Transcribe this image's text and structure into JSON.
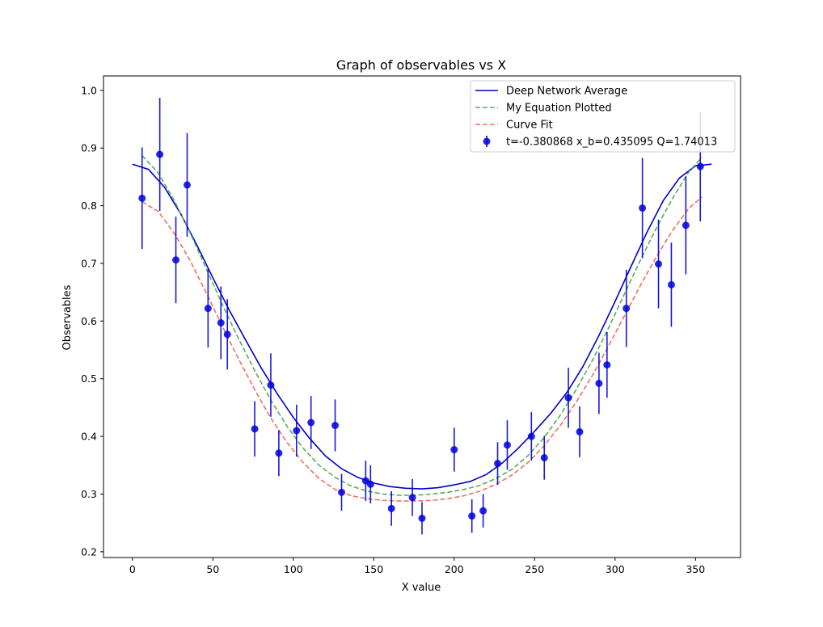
{
  "chart_data": {
    "type": "scatter",
    "title": "Graph of observables vs X",
    "xlabel": "X value",
    "ylabel": "Observables",
    "xlim": [
      -18,
      378
    ],
    "ylim": [
      0.19,
      1.025
    ],
    "xticks": [
      0,
      50,
      100,
      150,
      200,
      250,
      300,
      350
    ],
    "yticks": [
      0.2,
      0.3,
      0.4,
      0.5,
      0.6,
      0.7,
      0.8,
      0.9,
      1.0
    ],
    "yticks_labels": [
      "0.2",
      "0.3",
      "0.4",
      "0.5",
      "0.6",
      "0.7",
      "0.8",
      "0.9",
      "1.0"
    ],
    "grid": false,
    "legend_position": "upper right",
    "series": [
      {
        "name": "Deep Network Average",
        "kind": "line",
        "color": "#0000cc",
        "style": "solid",
        "x": [
          0,
          10,
          20,
          30,
          40,
          50,
          60,
          70,
          80,
          90,
          100,
          110,
          120,
          130,
          140,
          150,
          160,
          170,
          180,
          190,
          200,
          210,
          220,
          230,
          240,
          250,
          260,
          270,
          280,
          290,
          300,
          310,
          320,
          330,
          340,
          350,
          360
        ],
        "y": [
          0.872,
          0.863,
          0.832,
          0.786,
          0.732,
          0.675,
          0.62,
          0.569,
          0.519,
          0.474,
          0.433,
          0.397,
          0.366,
          0.344,
          0.329,
          0.319,
          0.313,
          0.31,
          0.309,
          0.311,
          0.316,
          0.322,
          0.334,
          0.354,
          0.38,
          0.409,
          0.44,
          0.476,
          0.521,
          0.575,
          0.634,
          0.695,
          0.755,
          0.809,
          0.848,
          0.869,
          0.872
        ]
      },
      {
        "name": "My Equation Plotted",
        "kind": "line",
        "color": "#5aaa5a",
        "style": "dashed",
        "x": [
          6,
          16,
          26,
          36,
          46,
          56,
          66,
          76,
          86,
          96,
          106,
          116,
          126,
          136,
          146,
          156,
          166,
          176,
          186,
          196,
          206,
          216,
          226,
          236,
          246,
          256,
          266,
          276,
          286,
          296,
          306,
          316,
          326,
          336,
          346,
          354
        ],
        "y": [
          0.887,
          0.857,
          0.809,
          0.752,
          0.69,
          0.628,
          0.569,
          0.514,
          0.463,
          0.418,
          0.38,
          0.35,
          0.329,
          0.314,
          0.305,
          0.3,
          0.298,
          0.298,
          0.3,
          0.303,
          0.308,
          0.315,
          0.327,
          0.343,
          0.367,
          0.398,
          0.437,
          0.482,
          0.532,
          0.588,
          0.648,
          0.707,
          0.763,
          0.814,
          0.859,
          0.884
        ]
      },
      {
        "name": "Curve Fit",
        "kind": "line",
        "color": "#f07060",
        "style": "dashed",
        "x": [
          6,
          16,
          26,
          36,
          46,
          56,
          66,
          76,
          86,
          96,
          106,
          116,
          126,
          136,
          146,
          156,
          166,
          176,
          186,
          196,
          206,
          216,
          226,
          236,
          246,
          256,
          266,
          276,
          286,
          296,
          306,
          316,
          326,
          336,
          346,
          354
        ],
        "y": [
          0.807,
          0.79,
          0.752,
          0.704,
          0.648,
          0.59,
          0.534,
          0.481,
          0.432,
          0.39,
          0.355,
          0.327,
          0.308,
          0.297,
          0.292,
          0.289,
          0.288,
          0.288,
          0.289,
          0.292,
          0.297,
          0.305,
          0.317,
          0.333,
          0.355,
          0.384,
          0.419,
          0.46,
          0.506,
          0.557,
          0.61,
          0.663,
          0.713,
          0.758,
          0.796,
          0.815
        ]
      },
      {
        "name": "t=-0.380868 x_b=0.435095 Q=1.74013",
        "kind": "errorbar",
        "color": "#0000dd",
        "x": [
          6,
          17,
          27,
          34,
          47,
          55,
          59,
          76,
          86,
          91,
          102,
          111,
          126,
          130,
          145,
          148,
          161,
          174,
          180,
          200,
          211,
          218,
          227,
          233,
          248,
          256,
          271,
          278,
          290,
          295,
          307,
          317,
          327,
          335,
          344,
          353
        ],
        "y": [
          0.813,
          0.889,
          0.706,
          0.836,
          0.622,
          0.597,
          0.577,
          0.413,
          0.489,
          0.371,
          0.41,
          0.424,
          0.419,
          0.303,
          0.323,
          0.317,
          0.275,
          0.294,
          0.258,
          0.377,
          0.262,
          0.271,
          0.353,
          0.385,
          0.4,
          0.363,
          0.467,
          0.408,
          0.492,
          0.524,
          0.622,
          0.796,
          0.699,
          0.663,
          0.766,
          0.868
        ],
        "yerr": [
          0.088,
          0.098,
          0.075,
          0.09,
          0.068,
          0.063,
          0.061,
          0.048,
          0.055,
          0.04,
          0.045,
          0.046,
          0.045,
          0.032,
          0.035,
          0.033,
          0.03,
          0.032,
          0.028,
          0.038,
          0.029,
          0.029,
          0.037,
          0.043,
          0.042,
          0.038,
          0.052,
          0.044,
          0.053,
          0.057,
          0.067,
          0.087,
          0.077,
          0.073,
          0.085,
          0.095
        ]
      }
    ]
  }
}
